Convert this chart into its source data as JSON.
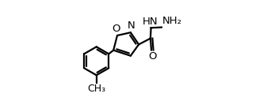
{
  "bg_color": "#ffffff",
  "bond_color": "#000000",
  "bond_lw": 1.6,
  "font_size": 9.5,
  "figsize": [
    3.32,
    1.42
  ],
  "dpi": 100,
  "xlim": [
    0.0,
    1.0
  ],
  "ylim": [
    0.0,
    1.0
  ]
}
